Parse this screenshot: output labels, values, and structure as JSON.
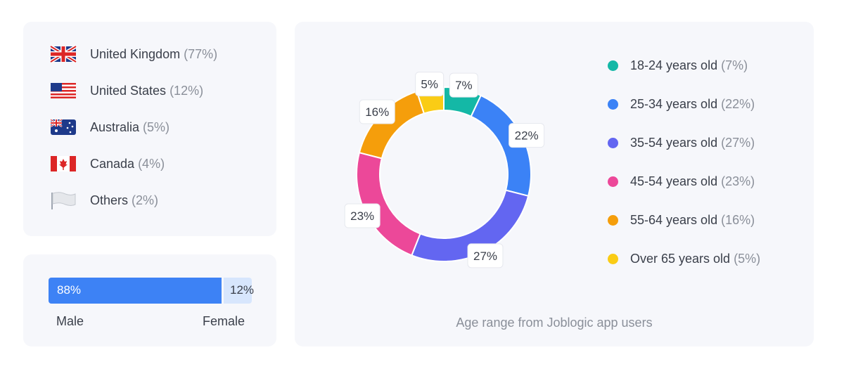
{
  "countries": [
    {
      "name": "United Kingdom",
      "pct": "(77%)",
      "flag_icon": "uk-flag-icon"
    },
    {
      "name": "United States",
      "pct": "(12%)",
      "flag_icon": "us-flag-icon"
    },
    {
      "name": "Australia",
      "pct": "(5%)",
      "flag_icon": "australia-flag-icon"
    },
    {
      "name": "Canada",
      "pct": "(4%)",
      "flag_icon": "canada-flag-icon"
    },
    {
      "name": "Others",
      "pct": "(2%)",
      "flag_icon": "white-flag-icon"
    }
  ],
  "gender": {
    "male_pct_label": "88%",
    "female_pct_label": "12%",
    "male_label": "Male",
    "female_label": "Female",
    "male_value": 88,
    "female_value": 12,
    "male_color": "#3d82f5",
    "female_color": "#d7e6fd"
  },
  "chart_data": {
    "type": "pie",
    "title": "",
    "caption": "Age range from Joblogic app users",
    "categories": [
      "18-24 years old",
      "25-34 years old",
      "35-54 years old",
      "45-54 years old",
      "55-64 years old",
      "Over 65 years old"
    ],
    "values": [
      7,
      22,
      27,
      23,
      16,
      5
    ],
    "value_labels": [
      "7%",
      "22%",
      "27%",
      "23%",
      "16%",
      "5%"
    ],
    "legend_pcts": [
      "(7%)",
      "(22%)",
      "(27%)",
      "(23%)",
      "(16%)",
      "(5%)"
    ],
    "colors": [
      "#14b8a6",
      "#3b82f6",
      "#6366f1",
      "#ec4899",
      "#f59e0b",
      "#facc15"
    ],
    "legend_position": "right"
  }
}
